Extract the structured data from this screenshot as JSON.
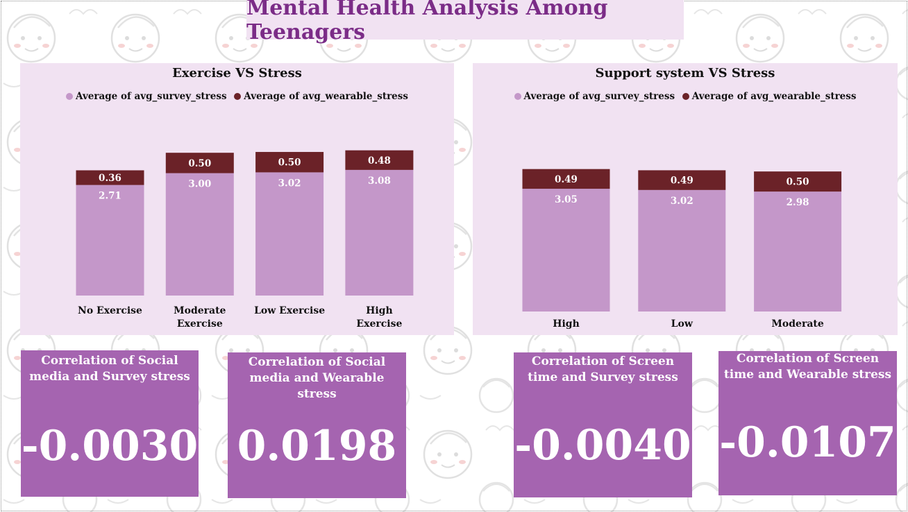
{
  "dashboard": {
    "title": "Mental Health Analysis Among Teenagers"
  },
  "colors": {
    "survey": "#c497c9",
    "wearable": "#6b2228",
    "panel_bg": "#f1e2f2",
    "kpi_bg": "#a564b0",
    "title_color": "#7b2c87"
  },
  "chart_data": [
    {
      "type": "bar",
      "stacked": true,
      "title": "Exercise VS Stress",
      "legend": "top",
      "categories": [
        "No Exercise",
        "Moderate Exercise",
        "Low Exercise",
        "High Exercise"
      ],
      "series": [
        {
          "name": "Average of avg_survey_stress",
          "values": [
            2.71,
            3.0,
            3.02,
            3.08
          ],
          "labels": [
            "2.71",
            "3.00",
            "3.02",
            "3.08"
          ]
        },
        {
          "name": "Average of avg_wearable_stress",
          "values": [
            0.36,
            0.5,
            0.5,
            0.48
          ],
          "labels": [
            "0.36",
            "0.50",
            "0.50",
            "0.48"
          ]
        }
      ]
    },
    {
      "type": "bar",
      "stacked": true,
      "title": "Support system VS Stress",
      "legend": "top",
      "categories": [
        "High",
        "Low",
        "Moderate"
      ],
      "series": [
        {
          "name": "Average of avg_survey_stress",
          "values": [
            3.05,
            3.02,
            2.98
          ],
          "labels": [
            "3.05",
            "3.02",
            "2.98"
          ]
        },
        {
          "name": "Average of avg_wearable_stress",
          "values": [
            0.49,
            0.49,
            0.5
          ],
          "labels": [
            "0.49",
            "0.49",
            "0.50"
          ]
        }
      ]
    }
  ],
  "kpis": [
    {
      "title": "Correlation of Social media and Survey stress",
      "value": "-0.0030"
    },
    {
      "title": "Correlation of Social media and Wearable stress",
      "value": "0.0198"
    },
    {
      "title": "Correlation of Screen time and Survey stress",
      "value": "-0.0040"
    },
    {
      "title": "Correlation of Screen time and Wearable stress",
      "value": "-0.0107"
    }
  ]
}
